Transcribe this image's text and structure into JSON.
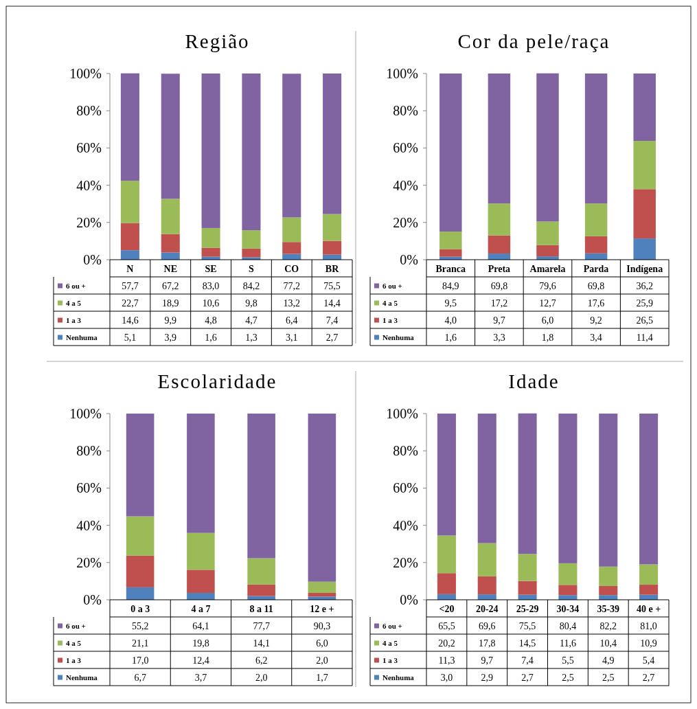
{
  "chart_data": [
    {
      "type": "bar",
      "title": "Região",
      "stacked": true,
      "legend": "bottom",
      "ylim": [
        0,
        100
      ],
      "yticks": [
        {
          "value": 0,
          "label": "0%"
        },
        {
          "value": 20,
          "label": "20%"
        },
        {
          "value": 40,
          "label": "40%"
        },
        {
          "value": 60,
          "label": "60%"
        },
        {
          "value": 80,
          "label": "80%"
        },
        {
          "value": 100,
          "label": "100%"
        }
      ],
      "categories": [
        "N",
        "NE",
        "SE",
        "S",
        "CO",
        "BR"
      ],
      "series": [
        {
          "name": "Nenhuma",
          "color": "#4f81bd",
          "values": [
            5.1,
            3.9,
            1.6,
            1.3,
            3.1,
            2.7
          ],
          "value_labels": [
            "5,1",
            "3,9",
            "1,6",
            "1,3",
            "3,1",
            "2,7"
          ]
        },
        {
          "name": "1 a 3",
          "color": "#c0504d",
          "values": [
            14.6,
            9.9,
            4.8,
            4.7,
            6.4,
            7.4
          ],
          "value_labels": [
            "14,6",
            "9,9",
            "4,8",
            "4,7",
            "6,4",
            "7,4"
          ]
        },
        {
          "name": "4 a 5",
          "color": "#9bbb59",
          "values": [
            22.7,
            18.9,
            10.6,
            9.8,
            13.2,
            14.4
          ],
          "value_labels": [
            "22,7",
            "18,9",
            "10,6",
            "9,8",
            "13,2",
            "14,4"
          ]
        },
        {
          "name": "6 ou +",
          "color": "#8064a2",
          "values": [
            57.7,
            67.2,
            83.0,
            84.2,
            77.2,
            75.5
          ],
          "value_labels": [
            "57,7",
            "67,2",
            "83,0",
            "84,2",
            "77,2",
            "75,5"
          ]
        }
      ]
    },
    {
      "type": "bar",
      "title": "Cor da pele/raça",
      "stacked": true,
      "legend": "bottom",
      "ylim": [
        0,
        100
      ],
      "yticks": [
        {
          "value": 0,
          "label": "0%"
        },
        {
          "value": 20,
          "label": "20%"
        },
        {
          "value": 40,
          "label": "40%"
        },
        {
          "value": 60,
          "label": "60%"
        },
        {
          "value": 80,
          "label": "80%"
        },
        {
          "value": 100,
          "label": "100%"
        }
      ],
      "categories": [
        "Branca",
        "Preta",
        "Amarela",
        "Parda",
        "Indígena"
      ],
      "series": [
        {
          "name": "Nenhuma",
          "color": "#4f81bd",
          "values": [
            1.6,
            3.3,
            1.8,
            3.4,
            11.4
          ],
          "value_labels": [
            "1,6",
            "3,3",
            "1,8",
            "3,4",
            "11,4"
          ]
        },
        {
          "name": "1 a 3",
          "color": "#c0504d",
          "values": [
            4.0,
            9.7,
            6.0,
            9.2,
            26.5
          ],
          "value_labels": [
            "4,0",
            "9,7",
            "6,0",
            "9,2",
            "26,5"
          ]
        },
        {
          "name": "4 a 5",
          "color": "#9bbb59",
          "values": [
            9.5,
            17.2,
            12.7,
            17.6,
            25.9
          ],
          "value_labels": [
            "9,5",
            "17,2",
            "12,7",
            "17,6",
            "25,9"
          ]
        },
        {
          "name": "6 ou +",
          "color": "#8064a2",
          "values": [
            84.9,
            69.8,
            79.6,
            69.8,
            36.2
          ],
          "value_labels": [
            "84,9",
            "69,8",
            "79,6",
            "69,8",
            "36,2"
          ]
        }
      ]
    },
    {
      "type": "bar",
      "title": "Escolaridade",
      "stacked": true,
      "legend": "bottom",
      "ylim": [
        0,
        100
      ],
      "yticks": [
        {
          "value": 0,
          "label": "0%"
        },
        {
          "value": 20,
          "label": "20%"
        },
        {
          "value": 40,
          "label": "40%"
        },
        {
          "value": 60,
          "label": "60%"
        },
        {
          "value": 80,
          "label": "80%"
        },
        {
          "value": 100,
          "label": "100%"
        }
      ],
      "categories": [
        "0 a 3",
        "4 a 7",
        "8 a 11",
        "12 e +"
      ],
      "series": [
        {
          "name": "Nenhuma",
          "color": "#4f81bd",
          "values": [
            6.7,
            3.7,
            2.0,
            1.7
          ],
          "value_labels": [
            "6,7",
            "3,7",
            "2,0",
            "1,7"
          ]
        },
        {
          "name": "1 a 3",
          "color": "#c0504d",
          "values": [
            17.0,
            12.4,
            6.2,
            2.0
          ],
          "value_labels": [
            "17,0",
            "12,4",
            "6,2",
            "2,0"
          ]
        },
        {
          "name": "4 a 5",
          "color": "#9bbb59",
          "values": [
            21.1,
            19.8,
            14.1,
            6.0
          ],
          "value_labels": [
            "21,1",
            "19,8",
            "14,1",
            "6,0"
          ]
        },
        {
          "name": "6 ou +",
          "color": "#8064a2",
          "values": [
            55.2,
            64.1,
            77.7,
            90.3
          ],
          "value_labels": [
            "55,2",
            "64,1",
            "77,7",
            "90,3"
          ]
        }
      ]
    },
    {
      "type": "bar",
      "title": "Idade",
      "stacked": true,
      "legend": "bottom",
      "ylim": [
        0,
        100
      ],
      "yticks": [
        {
          "value": 0,
          "label": "0%"
        },
        {
          "value": 20,
          "label": "20%"
        },
        {
          "value": 40,
          "label": "40%"
        },
        {
          "value": 60,
          "label": "60%"
        },
        {
          "value": 80,
          "label": "80%"
        },
        {
          "value": 100,
          "label": "100%"
        }
      ],
      "categories": [
        "<20",
        "20-24",
        "25-29",
        "30-34",
        "35-39",
        "40 e +"
      ],
      "series": [
        {
          "name": "Nenhuma",
          "color": "#4f81bd",
          "values": [
            3.0,
            2.9,
            2.7,
            2.5,
            2.5,
            2.7
          ],
          "value_labels": [
            "3,0",
            "2,9",
            "2,7",
            "2,5",
            "2,5",
            "2,7"
          ]
        },
        {
          "name": "1 a 3",
          "color": "#c0504d",
          "values": [
            11.3,
            9.7,
            7.4,
            5.5,
            4.9,
            5.4
          ],
          "value_labels": [
            "11,3",
            "9,7",
            "7,4",
            "5,5",
            "4,9",
            "5,4"
          ]
        },
        {
          "name": "4 a 5",
          "color": "#9bbb59",
          "values": [
            20.2,
            17.8,
            14.5,
            11.6,
            10.4,
            10.9
          ],
          "value_labels": [
            "20,2",
            "17,8",
            "14,5",
            "11,6",
            "10,4",
            "10,9"
          ]
        },
        {
          "name": "6 ou +",
          "color": "#8064a2",
          "values": [
            65.5,
            69.6,
            75.5,
            80.4,
            82.2,
            81.0
          ],
          "value_labels": [
            "65,5",
            "69,6",
            "75,5",
            "80,4",
            "82,2",
            "81,0"
          ]
        }
      ]
    }
  ]
}
